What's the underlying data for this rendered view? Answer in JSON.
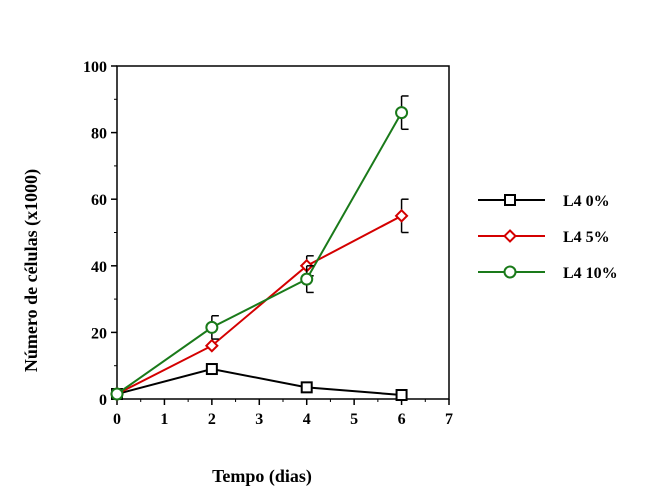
{
  "chart_data": {
    "type": "line",
    "title": "",
    "xlabel": "Tempo (dias)",
    "ylabel": "Número de células (x1000)",
    "xlim": [
      0,
      7
    ],
    "ylim": [
      0,
      100
    ],
    "xticks": [
      "0",
      "1",
      "2",
      "3",
      "4",
      "5",
      "6",
      "7"
    ],
    "yticks": [
      "0",
      "20",
      "40",
      "60",
      "80",
      "100"
    ],
    "grid": false,
    "legend_position": "right",
    "series": [
      {
        "name": "L4 0%",
        "color": "#000000",
        "marker": "square",
        "points": [
          {
            "x": 0,
            "y": 1.5,
            "err": 0
          },
          {
            "x": 2,
            "y": 9,
            "err": 0
          },
          {
            "x": 4,
            "y": 3.5,
            "err": 0
          },
          {
            "x": 6,
            "y": 1.2,
            "err": 0
          }
        ]
      },
      {
        "name": "L4 5%",
        "color": "#d40000",
        "marker": "diamond",
        "points": [
          {
            "x": 0,
            "y": 1.5,
            "err": 0
          },
          {
            "x": 2,
            "y": 16,
            "err": 0
          },
          {
            "x": 4,
            "y": 40,
            "err": 3
          },
          {
            "x": 6,
            "y": 55,
            "err": 5
          }
        ]
      },
      {
        "name": "L4 10%",
        "color": "#1a7a1a",
        "marker": "circle",
        "points": [
          {
            "x": 0,
            "y": 1.5,
            "err": 0
          },
          {
            "x": 2,
            "y": 21.5,
            "err": 3.5
          },
          {
            "x": 4,
            "y": 36,
            "err": 4
          },
          {
            "x": 6,
            "y": 86,
            "err": 5
          }
        ]
      }
    ]
  }
}
